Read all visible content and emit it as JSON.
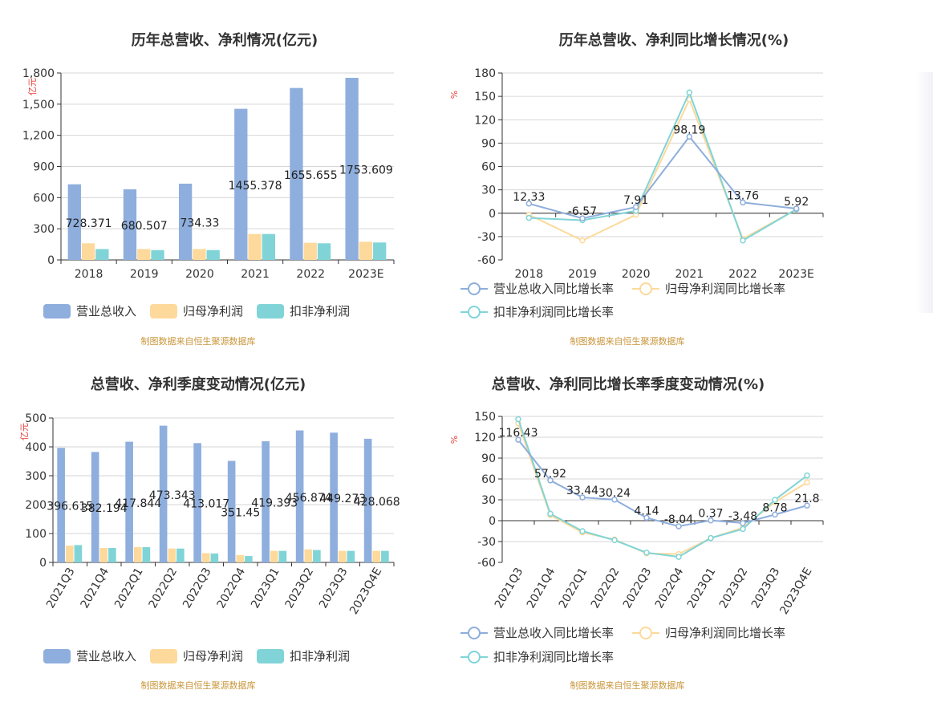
{
  "panels": [
    {
      "title": "历年总营收、净利情况(亿元)",
      "source": "制图数据来自恒生聚源数据库",
      "unit": "亿元",
      "legend": [
        "营业总收入",
        "归母净利润",
        "扣非净利润"
      ]
    },
    {
      "title": "历年总营收、净利同比增长情况(%)",
      "source": "制图数据来自恒生聚源数据库",
      "unit": "%",
      "legend": [
        "营业总收入同比增长率",
        "归母净利润同比增长率",
        "扣非净利润同比增长率"
      ]
    },
    {
      "title": "总营收、净利季度变动情况(亿元)",
      "source": "制图数据来自恒生聚源数据库",
      "unit": "亿元",
      "legend": [
        "营业总收入",
        "归母净利润",
        "扣非净利润"
      ]
    },
    {
      "title": "总营收、净利同比增长率季度变动情况(%)",
      "source": "制图数据来自恒生聚源数据库",
      "unit": "%",
      "legend": [
        "营业总收入同比增长率",
        "归母净利润同比增长率",
        "扣非净利润同比增长率"
      ]
    }
  ],
  "colors": {
    "revenue": "#8eaedd",
    "net_profit": "#fdd99b",
    "deducted_profit": "#80d4d7",
    "grid": "#d6d6d6",
    "axis": "#333333"
  },
  "chart_data": [
    {
      "type": "bar",
      "title": "历年总营收、净利情况(亿元)",
      "ylabel": "亿元",
      "categories": [
        "2018",
        "2019",
        "2020",
        "2021",
        "2022",
        "2023E"
      ],
      "ylim": [
        0,
        1800
      ],
      "yticks": [
        0,
        300,
        600,
        900,
        1200,
        1500,
        1800
      ],
      "ytick_labels": [
        "0",
        "300",
        "600",
        "900",
        "1,200",
        "1,500",
        "1,800"
      ],
      "series": [
        {
          "name": "营业总收入",
          "values": [
            728.371,
            680.507,
            734.33,
            1455.378,
            1655.655,
            1753.609
          ]
        },
        {
          "name": "归母净利润",
          "values": [
            160,
            105,
            105,
            250,
            165,
            175
          ]
        },
        {
          "name": "扣非净利润",
          "values": [
            105,
            95,
            95,
            250,
            160,
            168
          ]
        }
      ],
      "data_labels": [
        "728.371",
        "680.507",
        "734.33",
        "1455.378",
        "1655.655",
        "1753.609"
      ],
      "legend_position": "bottom-left"
    },
    {
      "type": "line",
      "title": "历年总营收、净利同比增长情况(%)",
      "ylabel": "%",
      "categories": [
        "2018",
        "2019",
        "2020",
        "2021",
        "2022",
        "2023E"
      ],
      "ylim": [
        -60,
        180
      ],
      "yticks": [
        -60,
        -30,
        0,
        30,
        60,
        90,
        120,
        150,
        180
      ],
      "series": [
        {
          "name": "营业总收入同比增长率",
          "values": [
            12.33,
            -6.57,
            7.91,
            98.19,
            13.76,
            5.92
          ]
        },
        {
          "name": "归母净利润同比增长率",
          "values": [
            -2,
            -35,
            -2,
            146,
            -33,
            5
          ]
        },
        {
          "name": "扣非净利润同比增长率",
          "values": [
            -6,
            -9,
            3,
            155,
            -35,
            5
          ]
        }
      ],
      "data_labels": [
        "12.33",
        "-6.57",
        "7.91",
        "98.19",
        "13.76",
        "5.92"
      ],
      "legend_position": "bottom-left"
    },
    {
      "type": "bar",
      "title": "总营收、净利季度变动情况(亿元)",
      "ylabel": "亿元",
      "categories": [
        "2021Q3",
        "2021Q4",
        "2022Q1",
        "2022Q2",
        "2022Q3",
        "2022Q4",
        "2023Q1",
        "2023Q2",
        "2023Q3",
        "2023Q4E"
      ],
      "ylim": [
        0,
        500
      ],
      "yticks": [
        0,
        100,
        200,
        300,
        400,
        500
      ],
      "ytick_labels": [
        "0",
        "100",
        "200",
        "300",
        "400",
        "500"
      ],
      "series": [
        {
          "name": "营业总收入",
          "values": [
            396.615,
            382.194,
            417.844,
            473.343,
            413.017,
            351.45,
            419.393,
            456.874,
            449.273,
            428.068
          ]
        },
        {
          "name": "归母净利润",
          "values": [
            58,
            50,
            53,
            48,
            32,
            25,
            40,
            45,
            40,
            40
          ]
        },
        {
          "name": "扣非净利润",
          "values": [
            60,
            50,
            53,
            48,
            31,
            22,
            40,
            43,
            40,
            40
          ]
        }
      ],
      "data_labels": [
        "396.615",
        "382.194",
        "417.844",
        "473.343",
        "413.017",
        "351.45",
        "419.393",
        "456.874",
        "449.273",
        "428.068"
      ],
      "legend_position": "bottom-left"
    },
    {
      "type": "line",
      "title": "总营收、净利同比增长率季度变动情况(%)",
      "ylabel": "%",
      "categories": [
        "2021Q3",
        "2021Q4",
        "2022Q1",
        "2022Q2",
        "2022Q3",
        "2022Q4",
        "2023Q1",
        "2023Q2",
        "2023Q3",
        "2023Q4E"
      ],
      "ylim": [
        -60,
        150
      ],
      "yticks": [
        -60,
        -30,
        0,
        30,
        60,
        90,
        120,
        150
      ],
      "series": [
        {
          "name": "营业总收入同比增长率",
          "values": [
            116.43,
            57.92,
            33.44,
            30.24,
            4.14,
            -8.04,
            0.37,
            -3.48,
            8.78,
            21.8
          ]
        },
        {
          "name": "归母净利润同比增长率",
          "values": [
            140,
            8,
            -17,
            -27,
            -47,
            -48,
            -25,
            -10,
            27,
            55
          ]
        },
        {
          "name": "扣非净利润同比增长率",
          "values": [
            146,
            10,
            -15,
            -28,
            -46,
            -52,
            -25,
            -12,
            30,
            65
          ]
        }
      ],
      "data_labels": [
        "116.43",
        "57.92",
        "33.44",
        "30.24",
        "4.14",
        "-8.04",
        "0.37",
        "-3.48",
        "8.78",
        "21.8"
      ],
      "legend_position": "bottom-left"
    }
  ]
}
